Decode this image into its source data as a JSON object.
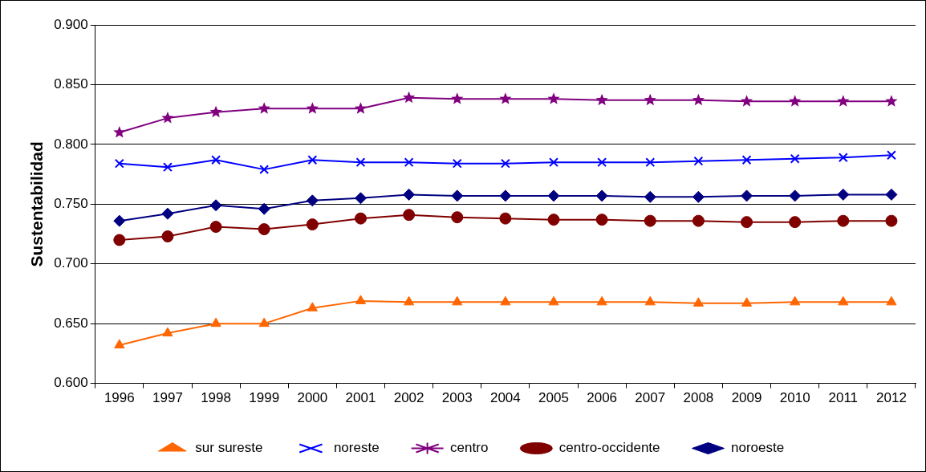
{
  "chart_data": {
    "type": "line",
    "ylabel": "Sustentabilidad",
    "categories": [
      "1996",
      "1997",
      "1998",
      "1999",
      "2000",
      "2001",
      "2002",
      "2003",
      "2004",
      "2005",
      "2006",
      "2007",
      "2008",
      "2009",
      "2010",
      "2011",
      "2012"
    ],
    "ylim": [
      0.6,
      0.9
    ],
    "yticks": [
      {
        "value": 0.6,
        "label": "0.600"
      },
      {
        "value": 0.65,
        "label": "0.650"
      },
      {
        "value": 0.7,
        "label": "0.700"
      },
      {
        "value": 0.75,
        "label": "0.750"
      },
      {
        "value": 0.8,
        "label": "0.800"
      },
      {
        "value": 0.85,
        "label": "0.850"
      },
      {
        "value": 0.9,
        "label": "0.900"
      }
    ],
    "grid": "y",
    "legend": "bottom",
    "line_style": "solid",
    "series": [
      {
        "name": "sur sureste",
        "color": "#ff6600",
        "marker": "triangle",
        "values": [
          0.632,
          0.642,
          0.65,
          0.65,
          0.663,
          0.669,
          0.668,
          0.668,
          0.668,
          0.668,
          0.668,
          0.668,
          0.667,
          0.667,
          0.668,
          0.668,
          0.668
        ]
      },
      {
        "name": "noreste",
        "color": "#0000ff",
        "marker": "cross",
        "values": [
          0.784,
          0.781,
          0.787,
          0.779,
          0.787,
          0.785,
          0.785,
          0.784,
          0.784,
          0.785,
          0.785,
          0.785,
          0.786,
          0.787,
          0.788,
          0.789,
          0.791
        ]
      },
      {
        "name": "centro",
        "color": "#800080",
        "marker": "star",
        "values": [
          0.81,
          0.822,
          0.827,
          0.83,
          0.83,
          0.83,
          0.839,
          0.838,
          0.838,
          0.838,
          0.837,
          0.837,
          0.837,
          0.836,
          0.836,
          0.836,
          0.836
        ]
      },
      {
        "name": "centro-occidente",
        "color": "#800000",
        "marker": "circle",
        "values": [
          0.72,
          0.723,
          0.731,
          0.729,
          0.733,
          0.738,
          0.741,
          0.739,
          0.738,
          0.737,
          0.737,
          0.736,
          0.736,
          0.735,
          0.735,
          0.736,
          0.736
        ]
      },
      {
        "name": "noroeste",
        "color": "#000080",
        "marker": "diamond",
        "values": [
          0.736,
          0.742,
          0.749,
          0.746,
          0.753,
          0.755,
          0.758,
          0.757,
          0.757,
          0.757,
          0.757,
          0.756,
          0.756,
          0.757,
          0.757,
          0.758,
          0.758
        ]
      }
    ]
  }
}
